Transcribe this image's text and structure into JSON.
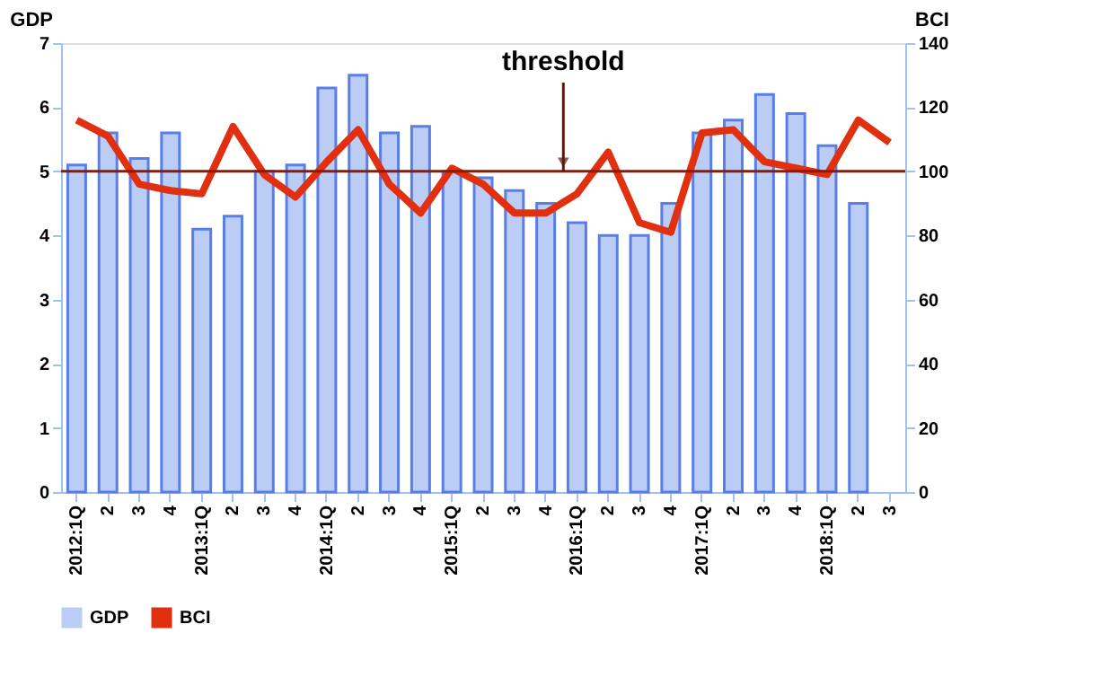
{
  "chart_data": {
    "type": "bar",
    "categories": [
      "2012:1Q",
      "2",
      "3",
      "4",
      "2013:1Q",
      "2",
      "3",
      "4",
      "2014:1Q",
      "2",
      "3",
      "4",
      "2015:1Q",
      "2",
      "3",
      "4",
      "2016:1Q",
      "2",
      "3",
      "4",
      "2017:1Q",
      "2",
      "3",
      "4",
      "2018:1Q",
      "2",
      "3"
    ],
    "series": [
      {
        "name": "GDP",
        "color": "#bccdf5",
        "values": [
          5.1,
          5.6,
          5.2,
          5.6,
          4.1,
          4.3,
          5.0,
          5.1,
          6.3,
          6.5,
          5.6,
          5.7,
          5.0,
          4.9,
          4.7,
          4.5,
          4.2,
          4.0,
          4.0,
          4.5,
          5.6,
          5.8,
          6.2,
          5.9,
          5.4,
          4.5,
          null
        ]
      },
      {
        "name": "BCI",
        "type": "line",
        "axis": "y2",
        "color": "#e0300f",
        "values": [
          116,
          111,
          96,
          94,
          93,
          114,
          99,
          92,
          103,
          113,
          96,
          87,
          101,
          96,
          87,
          87,
          93,
          106,
          84,
          81,
          112,
          113,
          103,
          101,
          99,
          116,
          109
        ]
      }
    ],
    "ylabel": "GDP",
    "y2label": "BCI",
    "ylim": [
      0,
      7
    ],
    "yticks": [
      0,
      1,
      2,
      3,
      4,
      5,
      6,
      7
    ],
    "y2lim": [
      0,
      140
    ],
    "y2ticks": [
      0,
      20,
      40,
      60,
      80,
      100,
      120,
      140
    ],
    "ref_lines": [
      {
        "axis": "y2",
        "value": 100,
        "label": "threshold",
        "color": "#8b1a0a"
      }
    ],
    "grid": false,
    "legend": "bottom",
    "marker": "none",
    "line_style": "solid"
  }
}
